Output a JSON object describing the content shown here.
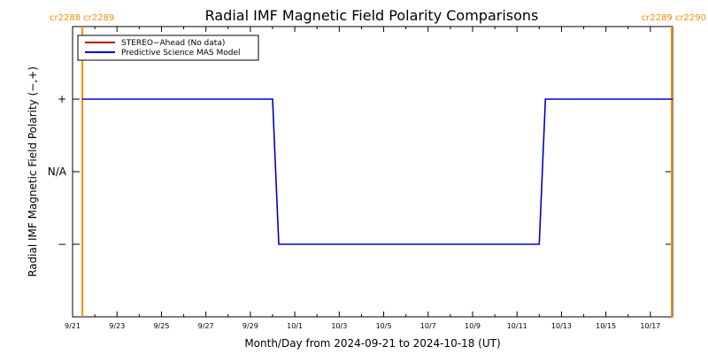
{
  "chart_data": {
    "type": "line",
    "title": "Radial IMF Magnetic Field Polarity Comparisons",
    "xlabel": "Month/Day from 2024-09-21 to 2024-10-18 (UT)",
    "ylabel": "Radial IMF Magnetic Field Polarity (−,+)",
    "x_range": [
      "2024-09-21",
      "2024-10-18"
    ],
    "x_tick_labels": [
      "9/21",
      "9/23",
      "9/25",
      "9/27",
      "9/29",
      "10/1",
      "10/3",
      "10/5",
      "10/7",
      "10/9",
      "10/11",
      "10/13",
      "10/15",
      "10/17"
    ],
    "y_categories": [
      {
        "label": "+",
        "value": 1
      },
      {
        "label": "N/A",
        "value": 0
      },
      {
        "label": "−",
        "value": -1
      }
    ],
    "ylim": [
      -2,
      2
    ],
    "legend": {
      "placement": "top-left",
      "entries": [
        {
          "label": "STEREO−Ahead (No data)",
          "color": "#c00000"
        },
        {
          "label": "Predictive Science MAS Model",
          "color": "#0000cc"
        }
      ]
    },
    "series": [
      {
        "color": "#0000cc",
        "x": [
          "2024-09-21",
          "2024-09-30",
          "2024-09-30",
          "2024-10-12",
          "2024-10-12",
          "2024-10-18"
        ],
        "y": [
          1,
          1,
          -1,
          -1,
          1,
          1
        ]
      }
    ],
    "carrington_rotations": {
      "color": "#ff8c00",
      "markers": [
        {
          "date": "2024-09-21",
          "labels": [
            "cr2288",
            "cr2289"
          ],
          "label_side": "left"
        },
        {
          "date": "2024-10-18",
          "labels": [
            "cr2289",
            "cr2290"
          ],
          "label_side": "right"
        }
      ]
    }
  }
}
